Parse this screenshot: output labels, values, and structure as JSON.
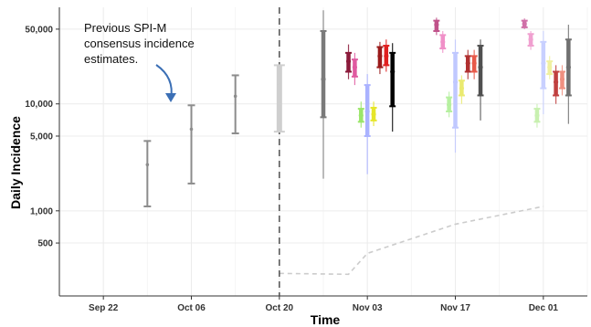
{
  "chart_data": {
    "type": "scatter",
    "title": "",
    "xlabel": "Time",
    "ylabel": "Daily Incidence",
    "y_scale": "log",
    "ylim": [
      160,
      80000
    ],
    "xlim": [
      "2020-09-15",
      "2020-12-08"
    ],
    "grid": true,
    "x_ticks": [
      {
        "date": "2020-09-22",
        "label": "Sep 22"
      },
      {
        "date": "2020-10-06",
        "label": "Oct 06"
      },
      {
        "date": "2020-10-20",
        "label": "Oct 20"
      },
      {
        "date": "2020-11-03",
        "label": "Nov 03"
      },
      {
        "date": "2020-11-17",
        "label": "Nov 17"
      },
      {
        "date": "2020-12-01",
        "label": "Dec 01"
      }
    ],
    "y_ticks": [
      {
        "value": 500,
        "label": "500"
      },
      {
        "value": 1000,
        "label": "1,000"
      },
      {
        "value": 5000,
        "label": "5,000"
      },
      {
        "value": 10000,
        "label": "10,000"
      },
      {
        "value": 50000,
        "label": "50,000"
      }
    ],
    "annotation": "Previous SPI-M consensus incidence estimates.",
    "vline_date": "2020-10-20",
    "consensus_estimates": [
      {
        "date": "2020-09-29",
        "low": 1100,
        "mid": 2700,
        "high": 4500,
        "color": "#8c8c8c"
      },
      {
        "date": "2020-10-06",
        "low": 1800,
        "mid": 5800,
        "high": 9700,
        "color": "#8c8c8c"
      },
      {
        "date": "2020-10-13",
        "low": 5300,
        "mid": 11800,
        "high": 18500,
        "color": "#8c8c8c"
      },
      {
        "date": "2020-10-20",
        "low": 5500,
        "mid": 15000,
        "high": 23000,
        "color": "#cfcfcf",
        "wide": true
      }
    ],
    "model_estimates": [
      {
        "date": "2020-10-27",
        "low": 7500,
        "mid": 17000,
        "high": 48000,
        "wlow": 2000,
        "whigh": 75000,
        "color": "#7a7a7a"
      },
      {
        "date": "2020-10-31",
        "low": 20000,
        "mid": 25000,
        "high": 30000,
        "wlow": 17000,
        "whigh": 36000,
        "color": "#8b1a3a"
      },
      {
        "date": "2020-11-01",
        "low": 18000,
        "mid": 22000,
        "high": 26000,
        "wlow": 15000,
        "whigh": 30000,
        "color": "#e05aa0"
      },
      {
        "date": "2020-11-02",
        "low": 6800,
        "mid": 7800,
        "high": 9000,
        "wlow": 6000,
        "whigh": 10500,
        "color": "#9be66a"
      },
      {
        "date": "2020-11-03",
        "low": 5000,
        "mid": 8500,
        "high": 15000,
        "wlow": 2200,
        "whigh": 19000,
        "color": "#aab2ff"
      },
      {
        "date": "2020-11-04",
        "low": 7000,
        "mid": 8000,
        "high": 9200,
        "wlow": 6200,
        "whigh": 10500,
        "color": "#e6e62a"
      },
      {
        "date": "2020-11-05",
        "low": 22000,
        "mid": 28000,
        "high": 34000,
        "wlow": 19000,
        "whigh": 38000,
        "color": "#9a1a1a"
      },
      {
        "date": "2020-11-06",
        "low": 23000,
        "mid": 28000,
        "high": 35000,
        "wlow": 20000,
        "whigh": 40000,
        "color": "#e02020"
      },
      {
        "date": "2020-11-07",
        "low": 9500,
        "mid": 20000,
        "high": 30000,
        "wlow": 5500,
        "whigh": 37000,
        "color": "#000000"
      },
      {
        "date": "2020-11-14",
        "low": 48000,
        "mid": 55000,
        "high": 60000,
        "wlow": 44000,
        "whigh": 64000,
        "color": "#c0528a"
      },
      {
        "date": "2020-11-15",
        "low": 33000,
        "mid": 38000,
        "high": 44000,
        "wlow": 30000,
        "whigh": 48000,
        "color": "#f090c8"
      },
      {
        "date": "2020-11-16",
        "low": 8500,
        "mid": 9800,
        "high": 11500,
        "wlow": 7500,
        "whigh": 13000,
        "color": "#b6f0a0"
      },
      {
        "date": "2020-11-17",
        "low": 6000,
        "mid": 16000,
        "high": 30000,
        "wlow": 3500,
        "whigh": 40000,
        "color": "#c0c8ff"
      },
      {
        "date": "2020-11-18",
        "low": 12000,
        "mid": 14000,
        "high": 16500,
        "wlow": 10000,
        "whigh": 18500,
        "color": "#eaea70"
      },
      {
        "date": "2020-11-19",
        "low": 20000,
        "mid": 24000,
        "high": 28000,
        "wlow": 17000,
        "whigh": 32000,
        "color": "#b03030"
      },
      {
        "date": "2020-11-20",
        "low": 20000,
        "mid": 24000,
        "high": 28000,
        "wlow": 17000,
        "whigh": 32000,
        "color": "#e85a4a"
      },
      {
        "date": "2020-11-21",
        "low": 12000,
        "mid": 22000,
        "high": 35000,
        "wlow": 7000,
        "whigh": 40000,
        "color": "#505050"
      },
      {
        "date": "2020-11-28",
        "low": 52000,
        "mid": 56000,
        "high": 60000,
        "wlow": 50000,
        "whigh": 63000,
        "color": "#d070a8"
      },
      {
        "date": "2020-11-29",
        "low": 35000,
        "mid": 40000,
        "high": 45000,
        "wlow": 32000,
        "whigh": 48000,
        "color": "#f0a0d0"
      },
      {
        "date": "2020-11-30",
        "low": 6800,
        "mid": 7800,
        "high": 9000,
        "wlow": 6000,
        "whigh": 10000,
        "color": "#c8f0b0"
      },
      {
        "date": "2020-12-01",
        "low": 14000,
        "mid": 24000,
        "high": 38000,
        "wlow": 8000,
        "whigh": 48000,
        "color": "#c8d0ff"
      },
      {
        "date": "2020-12-02",
        "low": 19000,
        "mid": 22000,
        "high": 25000,
        "wlow": 17000,
        "whigh": 28000,
        "color": "#f0f0a0"
      },
      {
        "date": "2020-12-03",
        "low": 12000,
        "mid": 16000,
        "high": 20000,
        "wlow": 10000,
        "whigh": 23000,
        "color": "#c04040"
      },
      {
        "date": "2020-12-04",
        "low": 14000,
        "mid": 17000,
        "high": 20000,
        "wlow": 12000,
        "whigh": 23000,
        "color": "#f09080"
      },
      {
        "date": "2020-12-05",
        "low": 12000,
        "mid": 22000,
        "high": 40000,
        "wlow": 6500,
        "whigh": 55000,
        "color": "#707070"
      }
    ],
    "dashed_line": [
      {
        "date": "2020-10-20",
        "value": 260
      },
      {
        "date": "2020-10-31",
        "value": 255
      },
      {
        "date": "2020-11-03",
        "value": 400
      },
      {
        "date": "2020-11-17",
        "value": 750
      },
      {
        "date": "2020-12-01",
        "value": 1100
      }
    ]
  }
}
